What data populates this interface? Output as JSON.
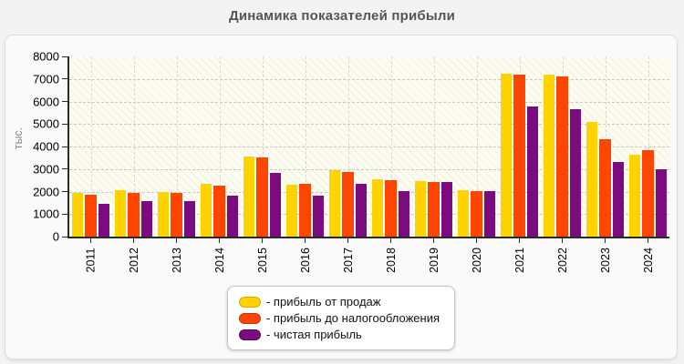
{
  "title": "Динамика показателей прибыли",
  "legend": {
    "prefix": "- ",
    "position": "bottom-center"
  },
  "chart_data": {
    "type": "bar",
    "title": "Динамика показателей прибыли",
    "xlabel": "",
    "ylabel": "тыс.",
    "ylim": [
      0,
      8000
    ],
    "y_ticks": [
      0,
      1000,
      2000,
      3000,
      4000,
      5000,
      6000,
      7000,
      8000
    ],
    "grid": "dashed horizontal lines at each 1000 and dashed vertical lines at each category center",
    "plot_background": "cream with diagonal hatch",
    "legend_position": "bottom-center",
    "categories": [
      "2011",
      "2012",
      "2013",
      "2014",
      "2015",
      "2016",
      "2017",
      "2018",
      "2019",
      "2020",
      "2021",
      "2022",
      "2023",
      "2024"
    ],
    "series": [
      {
        "name": "прибыль от продаж",
        "color": "#FFD300",
        "border_color": "#DFA600",
        "values": [
          1960,
          2060,
          2000,
          2340,
          3540,
          2300,
          2940,
          2560,
          2460,
          2070,
          7240,
          7200,
          5100,
          3640
        ]
      },
      {
        "name": "прибыль до налогообложения",
        "color": "#FF4500",
        "border_color": "#CC3300",
        "values": [
          1860,
          1960,
          1950,
          2270,
          3500,
          2340,
          2870,
          2510,
          2430,
          2020,
          7190,
          7120,
          4330,
          3830
        ]
      },
      {
        "name": "чистая прибыль",
        "color": "#7D0B80",
        "border_color": "#560558",
        "values": [
          1470,
          1560,
          1560,
          1840,
          2840,
          1820,
          2360,
          2030,
          2440,
          2030,
          5780,
          5670,
          3320,
          3000
        ]
      }
    ]
  },
  "colors": {
    "page_background": "#f3f3f3",
    "panel_background": "#fafafa",
    "title_text": "#555555",
    "axis": "#2a2a2a",
    "gridline": "#c9c9c4"
  }
}
